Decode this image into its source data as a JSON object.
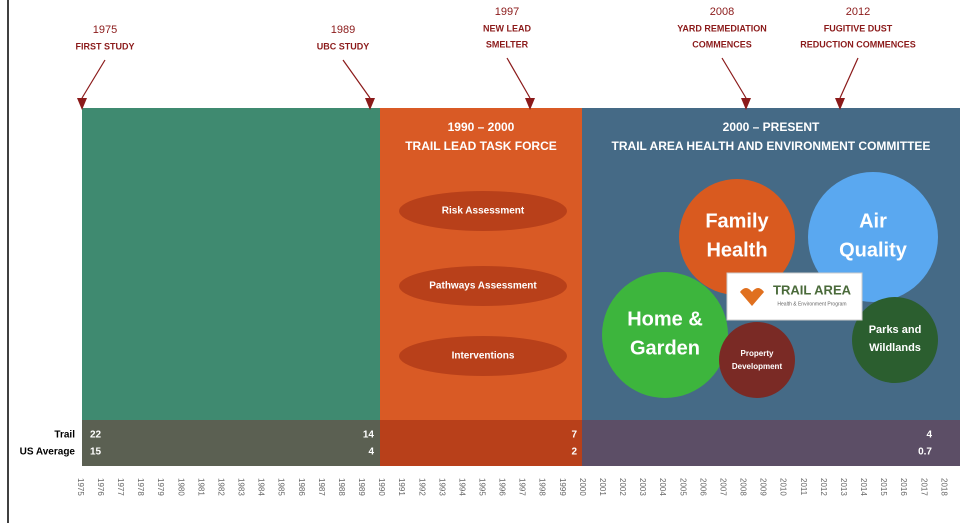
{
  "events": [
    {
      "year": "1975",
      "lines": [
        "FIRST STUDY"
      ]
    },
    {
      "year": "1989",
      "lines": [
        "UBC STUDY"
      ]
    },
    {
      "year": "1997",
      "lines": [
        "NEW LEAD",
        "SMELTER"
      ]
    },
    {
      "year": "2008",
      "lines": [
        "YARD REMEDIATION",
        "COMMENCES"
      ]
    },
    {
      "year": "2012",
      "lines": [
        "FUGITIVE DUST",
        "REDUCTION COMMENCES"
      ]
    }
  ],
  "periods": [
    {
      "years": "1990 – 2000",
      "title": "TRAIL LEAD TASK FORCE",
      "items": [
        "Risk Assessment",
        "Pathways Assessment",
        "Interventions"
      ]
    },
    {
      "years": "2000 – PRESENT",
      "title": "TRAIL AREA HEALTH AND ENVIRONMENT COMMITTEE",
      "programs": [
        [
          "Family",
          "Health"
        ],
        [
          "Air",
          "Quality"
        ],
        [
          "Home &",
          "Garden"
        ],
        [
          "Property",
          "Development"
        ],
        [
          "Parks and",
          "Wildlands"
        ]
      ]
    }
  ],
  "logo": {
    "title": "TRAIL AREA",
    "subtitle": "Health & Environment Program"
  },
  "table": {
    "row_labels": [
      "Trail",
      "US Average"
    ],
    "columns": [
      [
        "22",
        "15"
      ],
      [
        "14",
        "4"
      ],
      [
        "7",
        "2"
      ],
      [
        "4",
        "0.7"
      ]
    ]
  },
  "years": [
    "1975",
    "1976",
    "1977",
    "1978",
    "1979",
    "1980",
    "1981",
    "1982",
    "1983",
    "1984",
    "1985",
    "1986",
    "1987",
    "1988",
    "1989",
    "1990",
    "1991",
    "1992",
    "1993",
    "1994",
    "1995",
    "1996",
    "1997",
    "1998",
    "1999",
    "2000",
    "2001",
    "2002",
    "2003",
    "2004",
    "2005",
    "2006",
    "2007",
    "2008",
    "2009",
    "2010",
    "2011",
    "2012",
    "2013",
    "2014",
    "2015",
    "2016",
    "2017",
    "2018",
    "2019"
  ]
}
